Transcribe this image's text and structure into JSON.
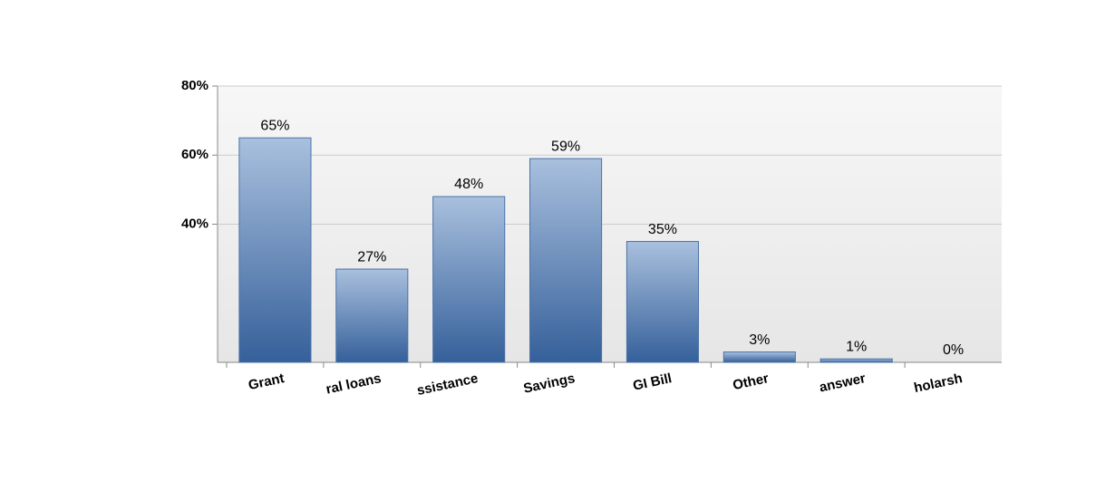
{
  "chart_data": {
    "type": "bar",
    "categories": [
      "Grant",
      "ral loans",
      "ssistance",
      "Savings",
      "GI Bill",
      "Other",
      "answer",
      "holarsh"
    ],
    "values": [
      65,
      27,
      48,
      59,
      35,
      3,
      1,
      0
    ],
    "value_labels": [
      "65%",
      "27%",
      "48%",
      "59%",
      "35%",
      "3%",
      "1%",
      "0%"
    ],
    "color": "#4a72a8",
    "ylim": [
      0,
      80
    ],
    "yticks": [
      {
        "value": 40,
        "label": "40%"
      },
      {
        "value": 60,
        "label": "60%"
      },
      {
        "value": 80,
        "label": "80%"
      }
    ],
    "grid": true
  }
}
